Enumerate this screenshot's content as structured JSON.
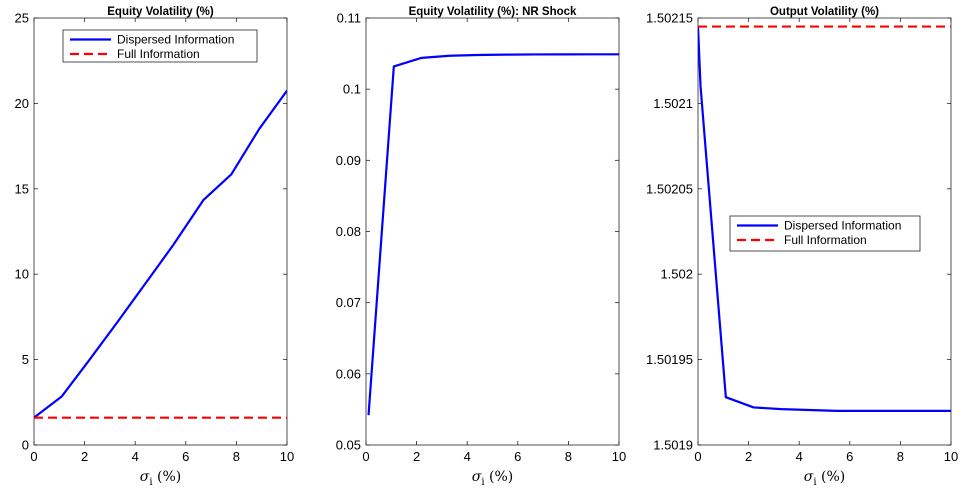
{
  "colors": {
    "dispersed": "#0000ff",
    "full": "#ff0000",
    "axis": "#262626"
  },
  "chart_data": [
    {
      "type": "line",
      "title": "Equity Volatility (%)",
      "xlabel": "σi (%)",
      "xlabel_symbol": "σ",
      "xlabel_sub": "i",
      "xlabel_rest": " (%)",
      "xlim": [
        0,
        10
      ],
      "ylim": [
        0,
        25
      ],
      "xticks": [
        0,
        2,
        4,
        6,
        8,
        10
      ],
      "xtick_labels": [
        "0",
        "2",
        "4",
        "6",
        "8",
        "10"
      ],
      "yticks": [
        0,
        5,
        10,
        15,
        20,
        25
      ],
      "ytick_labels": [
        "0",
        "5",
        "10",
        "15",
        "20",
        "25"
      ],
      "legend": {
        "placement": "top-center",
        "entries": [
          "Dispersed Information",
          "Full Information"
        ]
      },
      "series": [
        {
          "name": "Dispersed Information",
          "style": "solid",
          "x": [
            0,
            1.1,
            2.2,
            3.3,
            4.4,
            5.5,
            6.7,
            7.8,
            8.9,
            10
          ],
          "y": [
            1.6,
            2.85,
            5.0,
            7.2,
            9.45,
            11.7,
            14.35,
            15.85,
            18.5,
            20.75
          ]
        },
        {
          "name": "Full Information",
          "style": "dashed",
          "x": [
            0,
            10
          ],
          "y": [
            1.6,
            1.6
          ]
        }
      ]
    },
    {
      "type": "line",
      "title": "Equity Volatility (%): NR Shock",
      "xlabel": "σi (%)",
      "xlabel_symbol": "σ",
      "xlabel_sub": "i",
      "xlabel_rest": " (%)",
      "xlim": [
        0,
        10
      ],
      "ylim": [
        0.05,
        0.11
      ],
      "xticks": [
        0,
        2,
        4,
        6,
        8,
        10
      ],
      "xtick_labels": [
        "0",
        "2",
        "4",
        "6",
        "8",
        "10"
      ],
      "yticks": [
        0.05,
        0.06,
        0.07,
        0.08,
        0.09,
        0.1,
        0.11
      ],
      "ytick_labels": [
        "0.05",
        "0.06",
        "0.07",
        "0.08",
        "0.09",
        "0.1",
        "0.11"
      ],
      "series": [
        {
          "style": "solid",
          "x": [
            0.1,
            1.1,
            2.2,
            3.3,
            4.4,
            5.5,
            6.7,
            7.8,
            8.9,
            10
          ],
          "y": [
            0.0542,
            0.1032,
            0.1044,
            0.1047,
            0.1048,
            0.10485,
            0.10488,
            0.10489,
            0.1049,
            0.1049
          ]
        }
      ]
    },
    {
      "type": "line",
      "title": "Output Volatility (%)",
      "xlabel": "σi (%)",
      "xlabel_symbol": "σ",
      "xlabel_sub": "i",
      "xlabel_rest": " (%)",
      "xlim": [
        0,
        10
      ],
      "ylim": [
        1.5019,
        1.50215
      ],
      "xticks": [
        0,
        2,
        4,
        6,
        8,
        10
      ],
      "xtick_labels": [
        "0",
        "2",
        "4",
        "6",
        "8",
        "10"
      ],
      "yticks": [
        1.5019,
        1.50195,
        1.502,
        1.50205,
        1.5021,
        1.50215
      ],
      "ytick_labels": [
        "1.5019",
        "1.50195",
        "1.502",
        "1.50205",
        "1.5021",
        "1.50215"
      ],
      "legend": {
        "placement": "center-right",
        "entries": [
          "Dispersed Information",
          "Full Information"
        ]
      },
      "series": [
        {
          "name": "Dispersed Information",
          "style": "solid",
          "x": [
            0,
            0.1,
            1.1,
            2.2,
            3.3,
            4.4,
            5.5,
            6.7,
            7.8,
            8.9,
            10
          ],
          "y": [
            1.502145,
            1.50211,
            1.501928,
            1.501922,
            1.501921,
            1.5019205,
            1.50192,
            1.50192,
            1.50192,
            1.50192,
            1.50192
          ]
        },
        {
          "name": "Full Information",
          "style": "dashed",
          "x": [
            0,
            10
          ],
          "y": [
            1.502145,
            1.502145
          ]
        }
      ]
    }
  ]
}
